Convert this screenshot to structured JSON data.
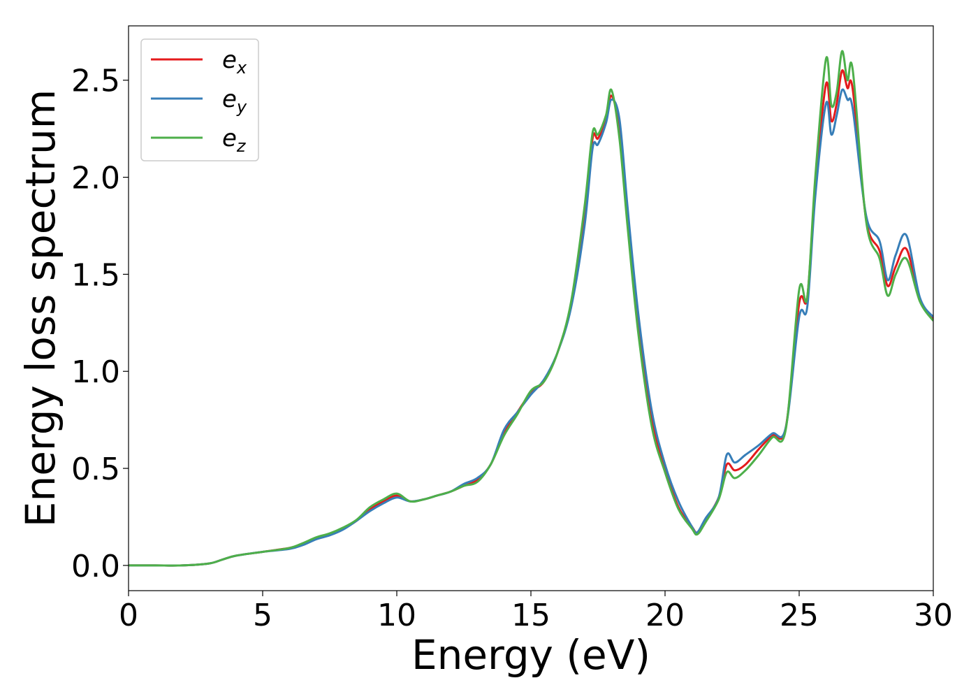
{
  "chart_data": {
    "type": "line",
    "title": "",
    "xlabel": "Energy (eV)",
    "ylabel": "Energy loss spectrum",
    "xlim": [
      0,
      30
    ],
    "ylim": [
      -0.13,
      2.78
    ],
    "xticks": [
      0,
      5,
      10,
      15,
      20,
      25,
      30
    ],
    "xtick_labels": [
      "0",
      "5",
      "10",
      "15",
      "20",
      "25",
      "30"
    ],
    "yticks": [
      0.0,
      0.5,
      1.0,
      1.5,
      2.0,
      2.5
    ],
    "ytick_labels": [
      "0.0",
      "0.5",
      "1.0",
      "1.5",
      "2.0",
      "2.5"
    ],
    "grid": false,
    "legend_position": "top-left",
    "x": [
      0,
      1,
      2,
      3,
      3.5,
      4,
      5,
      6,
      6.5,
      7,
      7.5,
      8,
      8.5,
      9,
      9.5,
      10,
      10.5,
      11,
      11.5,
      12,
      12.5,
      13,
      13.5,
      14,
      14.5,
      15,
      15.5,
      16,
      16.5,
      17,
      17.3,
      17.5,
      17.8,
      18,
      18.3,
      18.6,
      19,
      19.5,
      20,
      20.5,
      21,
      21.2,
      21.5,
      22,
      22.3,
      22.6,
      23,
      23.5,
      24,
      24.5,
      25,
      25.3,
      25.6,
      26,
      26.2,
      26.4,
      26.6,
      26.8,
      27,
      27.5,
      28,
      28.3,
      28.6,
      29,
      29.5,
      30
    ],
    "series": [
      {
        "name": "e",
        "subscript": "x",
        "color": "#e41a1c",
        "values": [
          0,
          0,
          0,
          0.01,
          0.03,
          0.05,
          0.07,
          0.09,
          0.11,
          0.14,
          0.16,
          0.19,
          0.23,
          0.29,
          0.33,
          0.36,
          0.33,
          0.34,
          0.36,
          0.38,
          0.41,
          0.44,
          0.52,
          0.68,
          0.79,
          0.89,
          0.95,
          1.1,
          1.35,
          1.8,
          2.2,
          2.2,
          2.3,
          2.42,
          2.25,
          1.8,
          1.25,
          0.75,
          0.5,
          0.3,
          0.2,
          0.17,
          0.23,
          0.35,
          0.52,
          0.49,
          0.52,
          0.6,
          0.67,
          0.71,
          1.35,
          1.38,
          1.95,
          2.48,
          2.29,
          2.38,
          2.55,
          2.46,
          2.45,
          1.78,
          1.62,
          1.44,
          1.54,
          1.63,
          1.37,
          1.27
        ]
      },
      {
        "name": "e",
        "subscript": "y",
        "color": "#377eb8",
        "values": [
          0,
          0,
          0,
          0.01,
          0.03,
          0.05,
          0.07,
          0.085,
          0.105,
          0.135,
          0.155,
          0.185,
          0.23,
          0.28,
          0.32,
          0.35,
          0.33,
          0.34,
          0.36,
          0.38,
          0.42,
          0.45,
          0.52,
          0.7,
          0.79,
          0.88,
          0.96,
          1.1,
          1.33,
          1.75,
          2.15,
          2.17,
          2.28,
          2.4,
          2.3,
          1.85,
          1.3,
          0.8,
          0.52,
          0.33,
          0.2,
          0.17,
          0.24,
          0.35,
          0.57,
          0.53,
          0.57,
          0.62,
          0.68,
          0.71,
          1.28,
          1.33,
          1.9,
          2.38,
          2.22,
          2.32,
          2.45,
          2.4,
          2.35,
          1.8,
          1.67,
          1.47,
          1.6,
          1.7,
          1.38,
          1.28
        ]
      },
      {
        "name": "e",
        "subscript": "z",
        "color": "#4daf4a",
        "values": [
          0,
          0,
          0,
          0.01,
          0.03,
          0.05,
          0.07,
          0.09,
          0.115,
          0.145,
          0.165,
          0.195,
          0.235,
          0.3,
          0.34,
          0.37,
          0.33,
          0.34,
          0.36,
          0.38,
          0.41,
          0.43,
          0.52,
          0.67,
          0.78,
          0.9,
          0.95,
          1.1,
          1.36,
          1.85,
          2.23,
          2.22,
          2.32,
          2.45,
          2.2,
          1.75,
          1.2,
          0.72,
          0.48,
          0.29,
          0.19,
          0.16,
          0.22,
          0.34,
          0.48,
          0.45,
          0.49,
          0.57,
          0.66,
          0.7,
          1.42,
          1.38,
          2.0,
          2.61,
          2.37,
          2.44,
          2.65,
          2.5,
          2.55,
          1.77,
          1.58,
          1.39,
          1.5,
          1.58,
          1.36,
          1.26
        ]
      }
    ]
  }
}
